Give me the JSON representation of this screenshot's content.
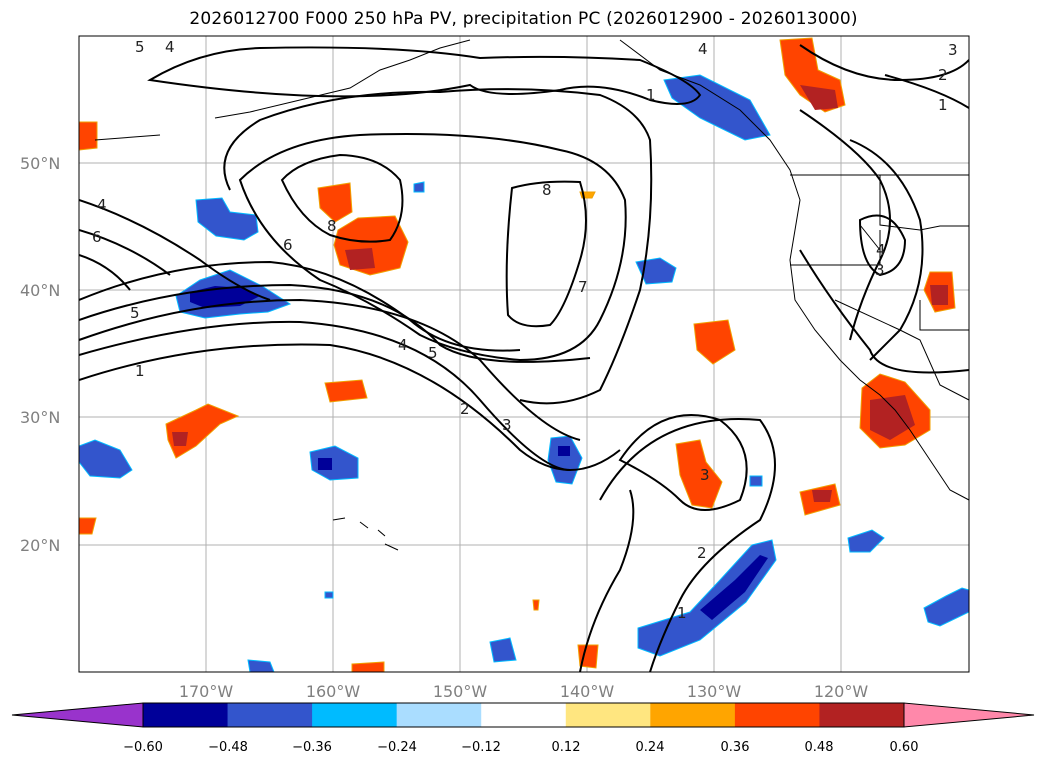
{
  "title": "2026012700 F000 250 hPa PV, precipitation PC (2026012900 - 2026013000)",
  "map": {
    "latitude_labels": [
      "50°N",
      "40°N",
      "30°N",
      "20°N"
    ],
    "longitude_labels": [
      "170°W",
      "160°W",
      "150°W",
      "140°W",
      "130°W",
      "120°W"
    ],
    "pv_contour_labels": [
      "5",
      "4",
      "4",
      "2",
      "1",
      "1",
      "4",
      "6",
      "6",
      "8",
      "8",
      "7",
      "5",
      "4",
      "5",
      "1",
      "2",
      "3",
      "3",
      "2",
      "1",
      "3",
      "4",
      "3"
    ]
  },
  "colorbar": {
    "tick_labels": [
      "−0.60",
      "−0.48",
      "−0.36",
      "−0.24",
      "−0.12",
      "0.12",
      "0.24",
      "0.36",
      "0.48",
      "0.60"
    ],
    "colors": [
      "#9933cc",
      "#000099",
      "#3355cc",
      "#00bbff",
      "#aaddff",
      "#ffffff",
      "#ffe680",
      "#ffa500",
      "#ff4400",
      "#b22222",
      "#ff88aa"
    ]
  }
}
